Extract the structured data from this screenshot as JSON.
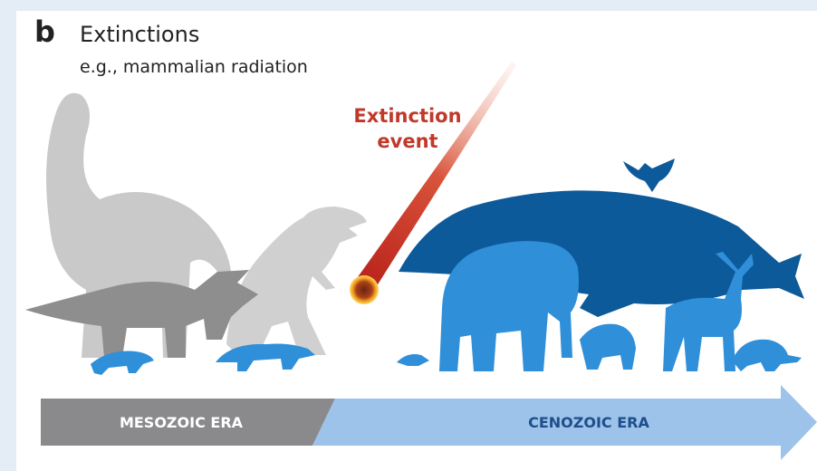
{
  "panel_label": "b",
  "title": "Extinctions",
  "subtitle": "e.g., mammalian radiation",
  "event_label": [
    "Extinction",
    "event"
  ],
  "eras": [
    "MESOZOIC ERA",
    "CENOZOIC ERA"
  ]
}
